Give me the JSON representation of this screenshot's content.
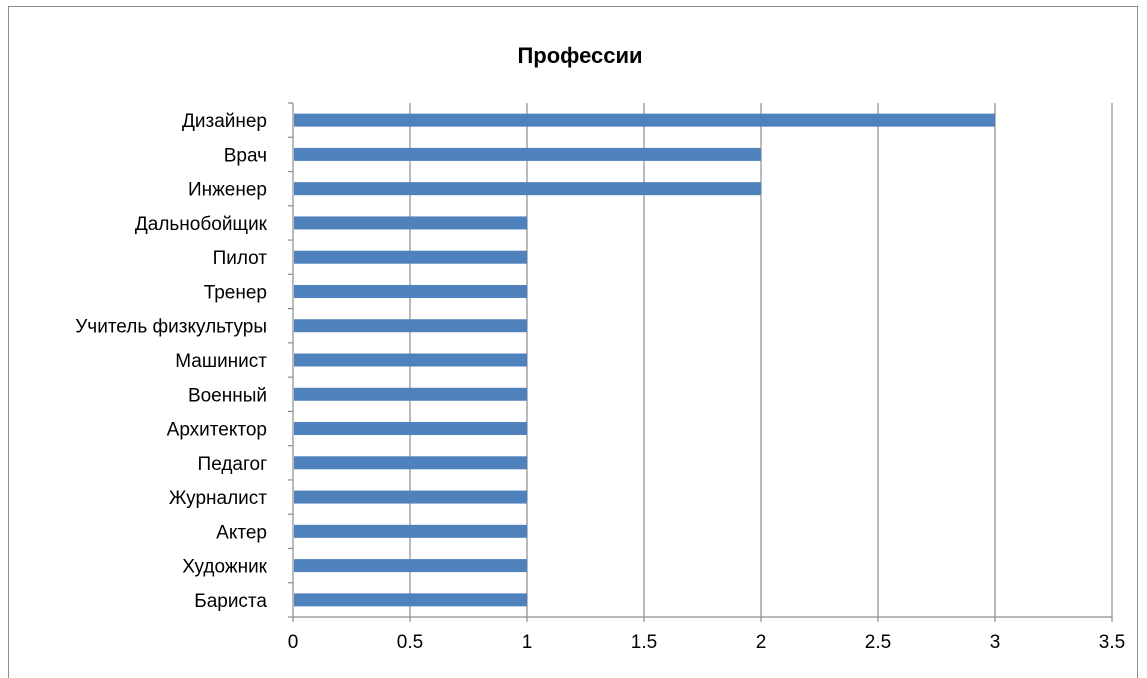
{
  "chart_data": {
    "type": "bar",
    "orientation": "horizontal",
    "title": "Профессии",
    "xlabel": "",
    "ylabel": "",
    "categories": [
      "Дизайнер",
      "Врач",
      "Инженер",
      "Дальнобойщик",
      "Пилот",
      "Тренер",
      "Учитель физкультуры",
      "Машинист",
      "Военный",
      "Архитектор",
      "Педагог",
      "Журналист",
      "Актер",
      "Художник",
      "Бариста"
    ],
    "values": [
      3,
      2,
      2,
      1,
      1,
      1,
      1,
      1,
      1,
      1,
      1,
      1,
      1,
      1,
      1
    ],
    "xlim": [
      0,
      3.5
    ],
    "xticks": [
      "0",
      "0.5",
      "1",
      "1.5",
      "2",
      "2.5",
      "3",
      "3.5"
    ],
    "grid": true,
    "legend": false,
    "colors": {
      "bar": "#4f81bd",
      "grid": "#8c8c8c",
      "axis": "#8c8c8c"
    }
  }
}
